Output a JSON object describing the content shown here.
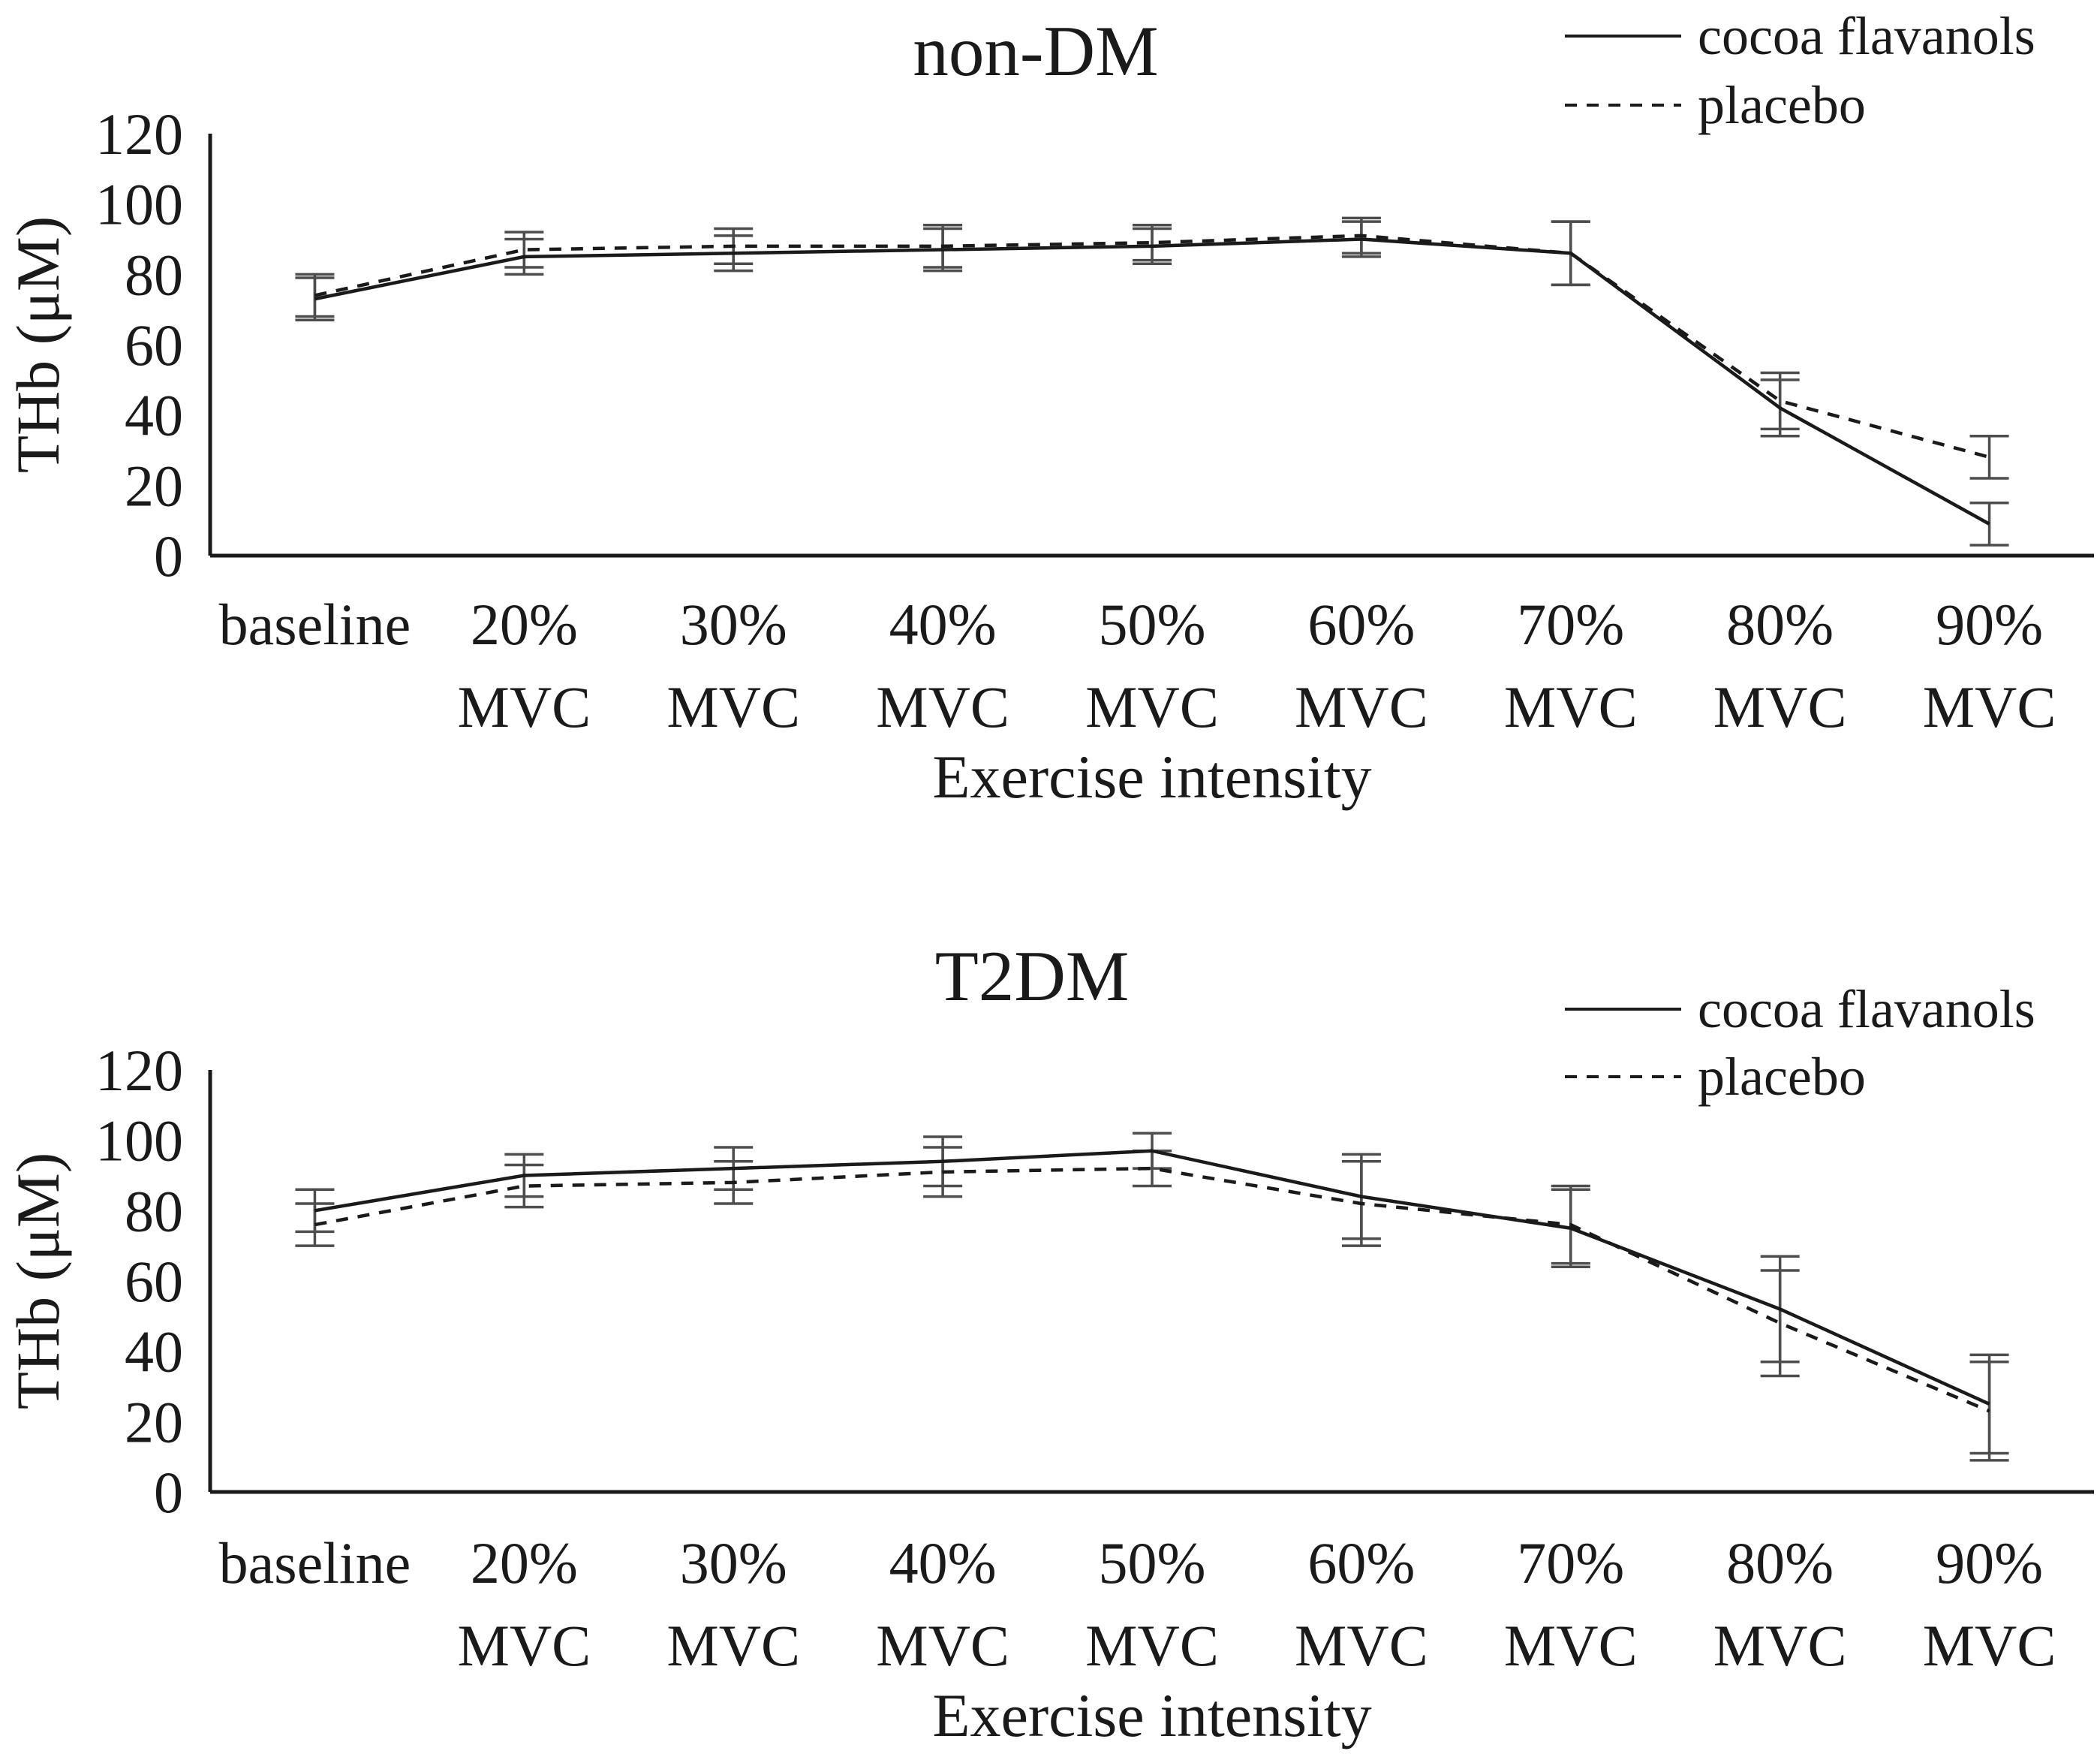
{
  "page": {
    "background_color": "#ffffff",
    "text_color": "#1a1a1a",
    "series_line_color": "#1a1a1a",
    "error_bar_color": "#4d4d4d"
  },
  "chart_data": [
    {
      "type": "line",
      "title": "non-DM",
      "xlabel": "Exercise intensity",
      "ylabel": "THb (μM)",
      "ylim": [
        0,
        120
      ],
      "ytick_step": 20,
      "ytick_labels": [
        "0",
        "20",
        "40",
        "60",
        "80",
        "100",
        "120"
      ],
      "grid": false,
      "legend_position": "top-right",
      "error_bars": true,
      "categories": [
        "baseline",
        "20% MVC",
        "30% MVC",
        "40% MVC",
        "50% MVC",
        "60% MVC",
        "70% MVC",
        "80% MVC",
        "90% MVC"
      ],
      "category_label_line1": [
        "baseline",
        "20%",
        "30%",
        "40%",
        "50%",
        "60%",
        "70%",
        "80%",
        "90%"
      ],
      "category_label_line2": [
        "",
        "MVC",
        "MVC",
        "MVC",
        "MVC",
        "MVC",
        "MVC",
        "MVC",
        "MVC"
      ],
      "series": [
        {
          "name": "cocoa flavanols",
          "line_style": "solid",
          "values": [
            73,
            85,
            86,
            87,
            88,
            90,
            86,
            42,
            9
          ],
          "errors": [
            6,
            5,
            5,
            6,
            5,
            5,
            9,
            8,
            6
          ]
        },
        {
          "name": "placebo",
          "line_style": "dashed",
          "values": [
            74,
            87,
            88,
            88,
            89,
            91,
            86,
            44,
            28
          ],
          "errors": [
            6,
            5,
            5,
            6,
            5,
            5,
            9,
            8,
            6
          ]
        }
      ]
    },
    {
      "type": "line",
      "title": "T2DM",
      "xlabel": "Exercise intensity",
      "ylabel": "THb (μM)",
      "ylim": [
        0,
        120
      ],
      "ytick_step": 20,
      "ytick_labels": [
        "0",
        "20",
        "40",
        "60",
        "80",
        "100",
        "120"
      ],
      "grid": false,
      "legend_position": "top-right",
      "error_bars": true,
      "categories": [
        "baseline",
        "20% MVC",
        "30% MVC",
        "40% MVC",
        "50% MVC",
        "60% MVC",
        "70% MVC",
        "80% MVC",
        "90% MVC"
      ],
      "category_label_line1": [
        "baseline",
        "20%",
        "30%",
        "40%",
        "50%",
        "60%",
        "70%",
        "80%",
        "90%"
      ],
      "category_label_line2": [
        "",
        "MVC",
        "MVC",
        "MVC",
        "MVC",
        "MVC",
        "MVC",
        "MVC",
        "MVC"
      ],
      "series": [
        {
          "name": "cocoa flavanols",
          "line_style": "solid",
          "values": [
            80,
            90,
            92,
            94,
            97,
            84,
            75,
            52,
            25
          ],
          "errors": [
            6,
            6,
            6,
            7,
            5,
            12,
            11,
            15,
            14
          ]
        },
        {
          "name": "placebo",
          "line_style": "dashed",
          "values": [
            76,
            87,
            88,
            91,
            92,
            82,
            76,
            48,
            23
          ],
          "errors": [
            6,
            6,
            6,
            7,
            5,
            12,
            11,
            15,
            14
          ]
        }
      ]
    }
  ]
}
